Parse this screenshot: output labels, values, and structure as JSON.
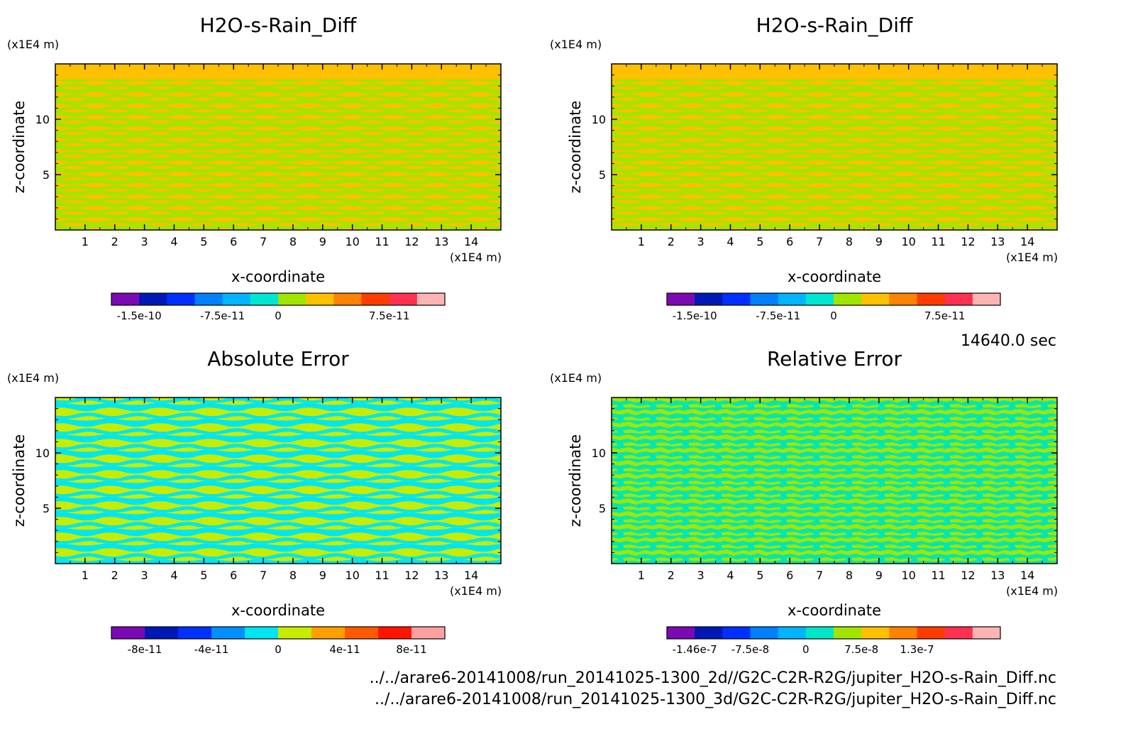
{
  "figure": {
    "time_label": "14640.0 sec",
    "file_paths": [
      "../../arare6-20141008/run_20141025-1300_2d//G2C-C2R-R2G/jupiter_H2O-s-Rain_Diff.nc",
      "../../arare6-20141008/run_20141025-1300_3d/G2C-C2R-R2G/jupiter_H2O-s-Rain_Diff.nc"
    ]
  },
  "chart_data": [
    {
      "type": "heatmap",
      "title": "H2O-s-Rain_Diff",
      "xlabel": "x-coordinate",
      "ylabel": "z-coordinate",
      "x_unit": "(x1E4 m)",
      "y_unit": "(x1E4 m)",
      "xlim": [
        0,
        15
      ],
      "ylim": [
        0,
        15
      ],
      "x_ticks": [
        "1",
        "2",
        "3",
        "4",
        "5",
        "6",
        "7",
        "8",
        "9",
        "10",
        "11",
        "12",
        "13",
        "14"
      ],
      "y_ticks": [
        "5",
        "10"
      ],
      "pattern_colors": [
        "#ffc000",
        "#a0e600"
      ],
      "colorbar": {
        "colors": [
          "#7c0ab4",
          "#0018b4",
          "#0030ff",
          "#0080ff",
          "#00b4ff",
          "#00e6d2",
          "#a0e600",
          "#ffc000",
          "#ff8200",
          "#ff3c00",
          "#ff3050",
          "#ffb4b4"
        ],
        "tick_labels": [
          "-1.5e-10",
          "-7.5e-11",
          "0",
          "7.5e-11"
        ]
      }
    },
    {
      "type": "heatmap",
      "title": "H2O-s-Rain_Diff",
      "xlabel": "x-coordinate",
      "ylabel": "z-coordinate",
      "x_unit": "(x1E4 m)",
      "y_unit": "(x1E4 m)",
      "xlim": [
        0,
        15
      ],
      "ylim": [
        0,
        15
      ],
      "x_ticks": [
        "1",
        "2",
        "3",
        "4",
        "5",
        "6",
        "7",
        "8",
        "9",
        "10",
        "11",
        "12",
        "13",
        "14"
      ],
      "y_ticks": [
        "5",
        "10"
      ],
      "pattern_colors": [
        "#ffc000",
        "#a0e600"
      ],
      "colorbar": {
        "colors": [
          "#7c0ab4",
          "#0018b4",
          "#0030ff",
          "#0080ff",
          "#00b4ff",
          "#00e6d2",
          "#a0e600",
          "#ffc000",
          "#ff8200",
          "#ff3c00",
          "#ff3050",
          "#ffb4b4"
        ],
        "tick_labels": [
          "-1.5e-10",
          "-7.5e-11",
          "0",
          "7.5e-11"
        ]
      }
    },
    {
      "type": "heatmap",
      "title": "Absolute Error",
      "xlabel": "x-coordinate",
      "ylabel": "z-coordinate",
      "x_unit": "(x1E4 m)",
      "y_unit": "(x1E4 m)",
      "xlim": [
        0,
        15
      ],
      "ylim": [
        0,
        15
      ],
      "x_ticks": [
        "1",
        "2",
        "3",
        "4",
        "5",
        "6",
        "7",
        "8",
        "9",
        "10",
        "11",
        "12",
        "13",
        "14"
      ],
      "y_ticks": [
        "5",
        "10"
      ],
      "pattern_colors": [
        "#00e6f0",
        "#c8ec00"
      ],
      "colorbar": {
        "colors": [
          "#7c0ab4",
          "#0018b4",
          "#0030ff",
          "#0090ff",
          "#00e6f0",
          "#c8ec00",
          "#ffa000",
          "#ff5a00",
          "#ff1400",
          "#ffa0a0"
        ],
        "tick_labels": [
          "-8e-11",
          "-4e-11",
          "0",
          "4e-11",
          "8e-11"
        ]
      }
    },
    {
      "type": "heatmap",
      "title": "Relative Error",
      "xlabel": "x-coordinate",
      "ylabel": "z-coordinate",
      "x_unit": "(x1E4 m)",
      "y_unit": "(x1E4 m)",
      "xlim": [
        0,
        15
      ],
      "ylim": [
        0,
        15
      ],
      "x_ticks": [
        "1",
        "2",
        "3",
        "4",
        "5",
        "6",
        "7",
        "8",
        "9",
        "10",
        "11",
        "12",
        "13",
        "14"
      ],
      "y_ticks": [
        "5",
        "10"
      ],
      "pattern_colors": [
        "#00e6b4",
        "#a0e600"
      ],
      "colorbar": {
        "colors": [
          "#7c0ab4",
          "#0018b4",
          "#0030ff",
          "#0080ff",
          "#00b4ff",
          "#00e6c8",
          "#a0e600",
          "#ffc000",
          "#ff8200",
          "#ff3c00",
          "#ff3050",
          "#ffb4b4"
        ],
        "tick_labels": [
          "-1.46e-7",
          "-7.5e-8",
          "0",
          "7.5e-8",
          "1.3e-7"
        ]
      }
    }
  ]
}
